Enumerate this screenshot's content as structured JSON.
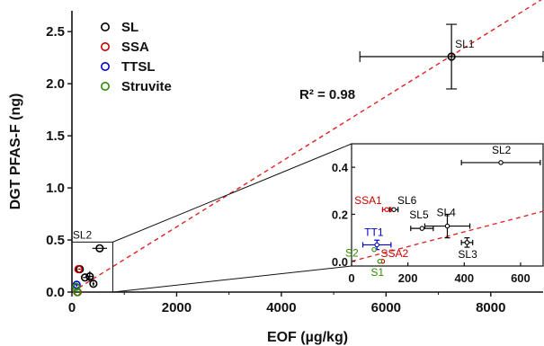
{
  "chart_data": {
    "type": "scatter",
    "xlabel": "EOF (µg/kg)",
    "ylabel": "DGT PFAS-F (ng)",
    "xlim": [
      0,
      9000
    ],
    "ylim": [
      0,
      2.7
    ],
    "xticks": [
      "0",
      "2000",
      "4000",
      "6000",
      "8000"
    ],
    "yticks": [
      "0.0",
      "0.5",
      "1.0",
      "1.5",
      "2.0",
      "2.5"
    ],
    "annotation": "R² = 0.98",
    "fit": {
      "slope": 0.000313,
      "intercept": 0.0
    },
    "legend": {
      "placement": "top-left",
      "entries": [
        {
          "name": "SL",
          "color": "#000000"
        },
        {
          "name": "SSA",
          "color": "#cc0000"
        },
        {
          "name": "TTSL",
          "color": "#0000cc"
        },
        {
          "name": "Struvite",
          "color": "#2e8b00"
        }
      ]
    },
    "series": [
      {
        "name": "SL",
        "color": "#000000",
        "points": [
          {
            "label": "SL1",
            "x": 7250,
            "y": 2.26,
            "xerr": 1750,
            "yerr": 0.31
          },
          {
            "label": "SL2",
            "x": 530,
            "y": 0.42,
            "xerr": 140,
            "yerr": 0.0
          },
          {
            "label": "SL3",
            "x": 410,
            "y": 0.08,
            "xerr": 20,
            "yerr": 0.02
          },
          {
            "label": "SL4",
            "x": 340,
            "y": 0.15,
            "xerr": 80,
            "yerr": 0.05
          },
          {
            "label": "SL5",
            "x": 250,
            "y": 0.14,
            "xerr": 40,
            "yerr": 0.0
          },
          {
            "label": "SL6",
            "x": 150,
            "y": 0.22,
            "xerr": 15,
            "yerr": 0.0
          }
        ]
      },
      {
        "name": "SSA",
        "color": "#cc0000",
        "points": [
          {
            "label": "SSA1",
            "x": 125,
            "y": 0.22,
            "xerr": 15,
            "yerr": 0.0
          },
          {
            "label": "SSA2",
            "x": 110,
            "y": 0.0,
            "xerr": 0,
            "yerr": 0.0
          }
        ]
      },
      {
        "name": "TTSL",
        "color": "#0000cc",
        "points": [
          {
            "label": "TT1",
            "x": 90,
            "y": 0.07,
            "xerr": 50,
            "yerr": 0.02
          }
        ]
      },
      {
        "name": "Struvite",
        "color": "#2e8b00",
        "points": [
          {
            "label": "S1",
            "x": 100,
            "y": 0.0,
            "xerr": 0,
            "yerr": 0.0
          },
          {
            "label": "S2",
            "x": 80,
            "y": 0.05,
            "xerr": 0,
            "yerr": 0.0
          }
        ]
      }
    ],
    "inset": {
      "xlim": [
        0,
        680
      ],
      "ylim": [
        -0.02,
        0.5
      ],
      "xticks": [
        "0",
        "200",
        "400",
        "600"
      ],
      "yticks": [
        "0.0",
        "0.2",
        "0.4"
      ],
      "source_region": {
        "x": [
          0,
          780
        ],
        "y": [
          0,
          0.48
        ]
      },
      "labels": {
        "SL2": "SL2",
        "SL3": "SL3",
        "SL4": "SL4",
        "SL5": "SL5",
        "SL6": "SL6",
        "SSA1": "SSA1",
        "SSA2": "SSA2",
        "TT1": "TT1",
        "S1": "S1",
        "S2": "S2"
      }
    }
  }
}
